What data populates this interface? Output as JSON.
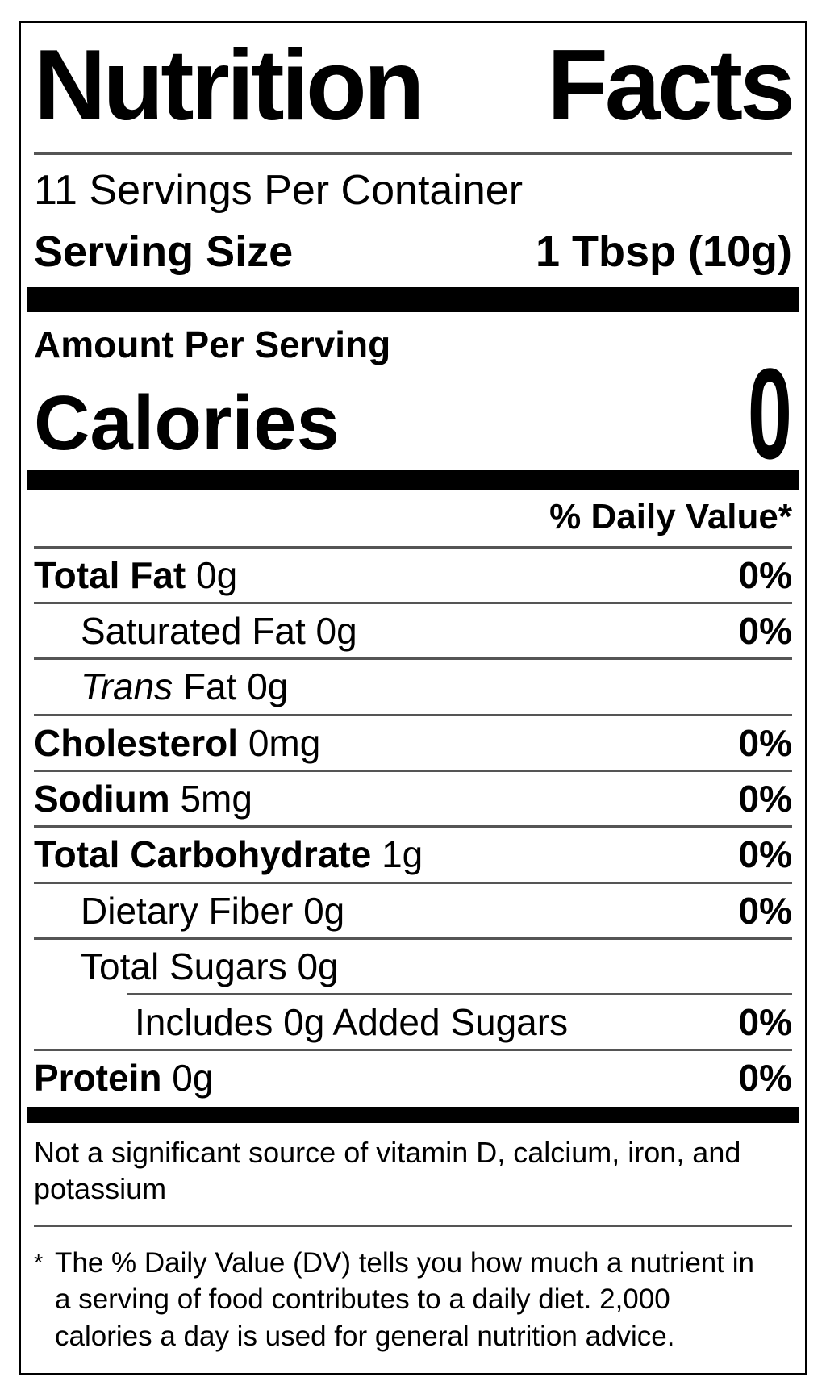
{
  "title": {
    "word1": "Nutrition",
    "word2": "Facts"
  },
  "serving_info": {
    "servings_per_container": "11 Servings Per Container",
    "serving_size_label": "Serving Size",
    "serving_size_value": "1 Tbsp (10g)"
  },
  "calories": {
    "section_label": "Amount Per Serving",
    "label": "Calories",
    "value": "0"
  },
  "daily_value": {
    "header": "% Daily Value*"
  },
  "nutrients": [
    {
      "bold": "Total Fat",
      "italic": "",
      "rest": " 0g",
      "dv": "0%",
      "indent": 0,
      "divider": "full"
    },
    {
      "bold": "",
      "italic": "",
      "rest": "Saturated Fat 0g",
      "dv": "0%",
      "indent": 1,
      "divider": "full"
    },
    {
      "bold": "",
      "italic": "Trans",
      "rest": " Fat 0g",
      "dv": "",
      "indent": 1,
      "divider": "full"
    },
    {
      "bold": "Cholesterol",
      "italic": "",
      "rest": " 0mg",
      "dv": "0%",
      "indent": 0,
      "divider": "full"
    },
    {
      "bold": "Sodium",
      "italic": "",
      "rest": " 5mg",
      "dv": "0%",
      "indent": 0,
      "divider": "full"
    },
    {
      "bold": "Total Carbohydrate",
      "italic": "",
      "rest": " 1g",
      "dv": "0%",
      "indent": 0,
      "divider": "full"
    },
    {
      "bold": "",
      "italic": "",
      "rest": "Dietary Fiber 0g",
      "dv": "0%",
      "indent": 1,
      "divider": "full"
    },
    {
      "bold": "",
      "italic": "",
      "rest": "Total Sugars 0g",
      "dv": "",
      "indent": 1,
      "divider": "indent"
    },
    {
      "bold": "",
      "italic": "",
      "rest": "Includes 0g Added Sugars",
      "dv": "0%",
      "indent": 2,
      "divider": "full"
    },
    {
      "bold": "Protein",
      "italic": "",
      "rest": " 0g",
      "dv": "0%",
      "indent": 0,
      "divider": "none"
    }
  ],
  "footer": {
    "not_significant": "Not a significant source of vitamin D, calcium, iron, and potassium",
    "footnote_marker": "*",
    "footnote": "The % Daily Value (DV) tells you how much a nutrient in a serving of food contributes to a daily diet. 2,000 calories a day is used for general nutrition advice."
  },
  "colors": {
    "ink": "#000000",
    "rule": "#555555",
    "background": "#ffffff"
  }
}
